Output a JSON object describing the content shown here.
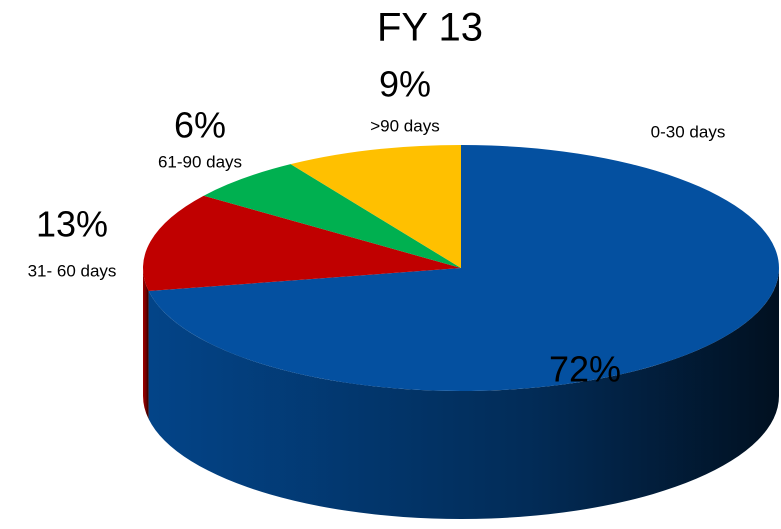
{
  "chart_data": {
    "type": "pie",
    "title": "FY 13",
    "categories": [
      "0-30 days",
      "31- 60 days",
      "61-90 days",
      ">90 days"
    ],
    "values": [
      72,
      13,
      6,
      9
    ],
    "value_labels": [
      "72%",
      "13%",
      "6%",
      "9%"
    ],
    "colors": [
      "#0450a0",
      "#c00000",
      "#00b050",
      "#ffc000"
    ],
    "title_color": "#1f3d99"
  }
}
